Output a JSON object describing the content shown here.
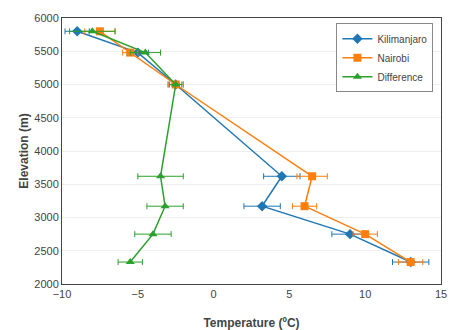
{
  "chart_data": {
    "type": "line",
    "xlabel": "Temperature (ºC)",
    "ylabel": "Elevation (m)",
    "series": [
      {
        "name": "Kilimanjaro",
        "marker": "diamond",
        "x": [
          -9.0,
          -5.0,
          -2.5,
          4.5,
          3.2,
          9.0,
          13.0
        ],
        "values": [
          5800,
          5480,
          5000,
          3620,
          3170,
          2750,
          2330
        ],
        "xerr_minus": [
          0.8,
          0.7,
          0.5,
          1.2,
          1.2,
          1.2,
          1.2
        ],
        "xerr_plus": [
          0.8,
          0.7,
          0.5,
          1.2,
          1.2,
          1.2,
          1.2
        ]
      },
      {
        "name": "Nairobi",
        "marker": "square",
        "x": [
          -7.5,
          -5.5,
          -2.5,
          6.5,
          6.0,
          10.0,
          13.0
        ],
        "values": [
          5800,
          5480,
          5000,
          3620,
          3170,
          2750,
          2330
        ],
        "xerr_minus": [
          1.0,
          0.5,
          0.5,
          1.0,
          0.8,
          0.8,
          0.8
        ],
        "xerr_plus": [
          1.0,
          0.5,
          0.5,
          1.0,
          0.8,
          0.8,
          0.8
        ]
      },
      {
        "name": "Difference",
        "marker": "triangle-up",
        "x": [
          -8.0,
          -4.5,
          -2.5,
          -3.5,
          -3.2,
          -4.0,
          -5.5
        ],
        "values": [
          5800,
          5480,
          5000,
          3620,
          3170,
          2750,
          2330
        ],
        "xerr_minus": [
          1.5,
          1.0,
          0.4,
          1.5,
          1.2,
          1.2,
          0.8
        ],
        "xerr_plus": [
          1.5,
          1.0,
          0.4,
          1.5,
          1.2,
          1.2,
          0.8
        ]
      }
    ],
    "xlim": [
      -10,
      15
    ],
    "ylim": [
      2000,
      6000
    ],
    "xticks": [
      -10,
      -5,
      0,
      5,
      10,
      15
    ],
    "yticks": [
      2000,
      2500,
      3000,
      3500,
      4000,
      4500,
      5000,
      5500,
      6000
    ],
    "grid": "y",
    "legend": "upper right"
  }
}
